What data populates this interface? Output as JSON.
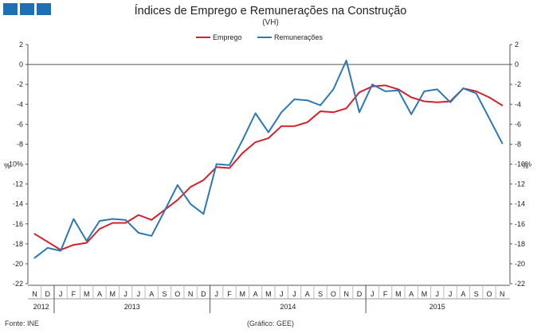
{
  "header": {
    "title": "Índices de Emprego e Remunerações na Construção",
    "subtitle": "(VH)"
  },
  "footer": {
    "source": "Fonte: INE",
    "credit": "(Gráfico: GEE)"
  },
  "colors": {
    "emprego": "#d4202a",
    "remuneracoes": "#2d77b3",
    "logo": "#1f6fb4",
    "axis": "#555555"
  },
  "chart_data": {
    "type": "line",
    "title": "Índices de Emprego e Remunerações na Construção",
    "subtitle": "(VH)",
    "ylabel_left": "%",
    "ylabel_right": "%",
    "ylim": [
      -22,
      2
    ],
    "yticks": [
      2,
      0,
      -2,
      -4,
      -6,
      -8,
      -10,
      -12,
      -14,
      -16,
      -18,
      -20,
      -22
    ],
    "grid": false,
    "legend": "top-center",
    "months": [
      "N",
      "D",
      "J",
      "F",
      "M",
      "A",
      "M",
      "J",
      "J",
      "A",
      "S",
      "O",
      "N",
      "D",
      "J",
      "F",
      "M",
      "A",
      "M",
      "J",
      "J",
      "A",
      "S",
      "O",
      "N",
      "D",
      "J",
      "F",
      "M",
      "A",
      "M",
      "J",
      "J",
      "A",
      "S",
      "O",
      "N"
    ],
    "years": [
      {
        "label": "2012",
        "start": 0,
        "end": 1
      },
      {
        "label": "2013",
        "start": 2,
        "end": 13
      },
      {
        "label": "2014",
        "start": 14,
        "end": 25
      },
      {
        "label": "2015",
        "start": 26,
        "end": 36
      }
    ],
    "series": [
      {
        "name": "Emprego",
        "color": "#d4202a",
        "values": [
          -17.0,
          -17.8,
          -18.6,
          -18.1,
          -17.9,
          -16.5,
          -15.9,
          -15.9,
          -15.1,
          -15.6,
          -14.6,
          -13.6,
          -12.3,
          -11.6,
          -10.3,
          -10.4,
          -8.9,
          -7.8,
          -7.4,
          -6.2,
          -6.2,
          -5.8,
          -4.7,
          -4.8,
          -4.4,
          -2.8,
          -2.2,
          -2.1,
          -2.5,
          -3.3,
          -3.7,
          -3.8,
          -3.7,
          -2.4,
          -2.7,
          -3.3,
          -4.1
        ]
      },
      {
        "name": "Remunerações",
        "color": "#2d77b3",
        "values": [
          -19.4,
          -18.4,
          -18.7,
          -15.5,
          -17.7,
          -15.7,
          -15.5,
          -15.6,
          -16.9,
          -17.2,
          -14.7,
          -12.1,
          -14.0,
          -15.0,
          -10.0,
          -10.1,
          -7.6,
          -4.9,
          -6.8,
          -4.8,
          -3.5,
          -3.6,
          -4.1,
          -2.5,
          0.4,
          -4.8,
          -2.0,
          -2.7,
          -2.6,
          -5.0,
          -2.7,
          -2.5,
          -3.8,
          -2.4,
          -2.9,
          -5.4,
          -7.9
        ]
      }
    ]
  }
}
